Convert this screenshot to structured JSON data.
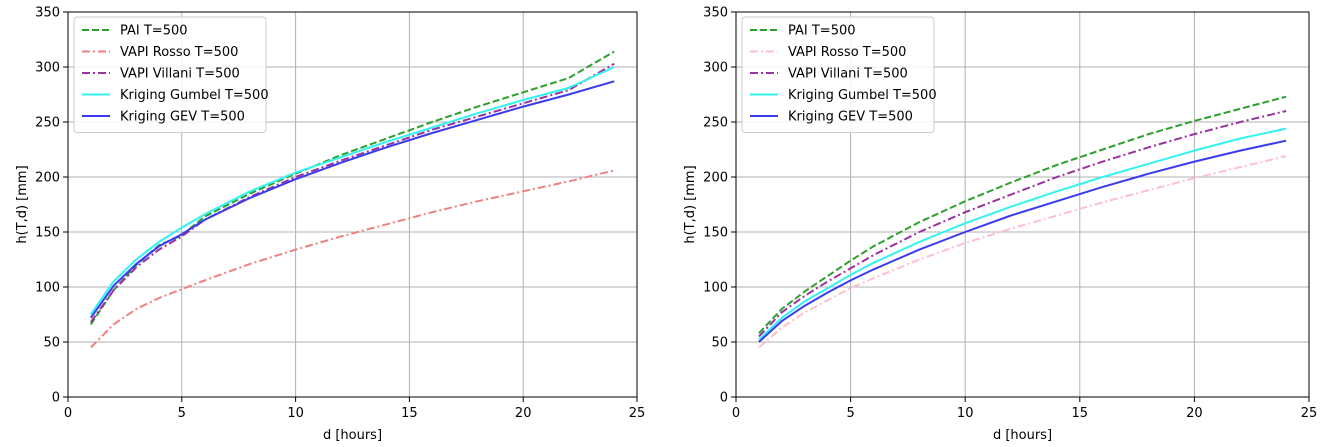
{
  "chart_data": [
    {
      "type": "line",
      "xlabel": "d [hours]",
      "ylabel": "h(T,d) [mm]",
      "xlim": [
        0,
        25
      ],
      "ylim": [
        0,
        350
      ],
      "xticks": [
        0,
        5,
        10,
        15,
        20,
        25
      ],
      "yticks": [
        0,
        50,
        100,
        150,
        200,
        250,
        300,
        350
      ],
      "grid": true,
      "legend": "top-left",
      "x": [
        1,
        2,
        3,
        4,
        5,
        6,
        8,
        10,
        12,
        14,
        16,
        18,
        20,
        22,
        24
      ],
      "series": [
        {
          "name": "PAI T=500",
          "color": "#2ca02c",
          "style": "dashed",
          "values": [
            66,
            97,
            120,
            138,
            147,
            164,
            185,
            203,
            220,
            235,
            250,
            264,
            277,
            290,
            314
          ]
        },
        {
          "name": "VAPI Rosso T=500",
          "color": "#f08080",
          "style": "dashdot",
          "values": [
            45,
            66,
            80,
            90,
            98,
            106,
            121,
            134,
            146,
            157,
            168,
            178,
            187,
            196,
            206
          ]
        },
        {
          "name": "VAPI Villani T=500",
          "color": "#9932a0",
          "style": "dashdot",
          "values": [
            68,
            97,
            118,
            134,
            146,
            161,
            182,
            200,
            215,
            229,
            243,
            255,
            267,
            279,
            303
          ]
        },
        {
          "name": "Kriging Gumbel T=500",
          "color": "#33f2f2",
          "style": "solid",
          "values": [
            75,
            105,
            125,
            141,
            154,
            166,
            187,
            204,
            218,
            232,
            245,
            258,
            270,
            281,
            300
          ]
        },
        {
          "name": "Kriging GEV T=500",
          "color": "#3a3aee",
          "style": "solid",
          "values": [
            72,
            101,
            121,
            137,
            148,
            161,
            181,
            198,
            213,
            227,
            240,
            252,
            264,
            275,
            287
          ]
        }
      ]
    },
    {
      "type": "line",
      "xlabel": "d [hours]",
      "ylabel": "h(T,d) [mm]",
      "xlim": [
        0,
        25
      ],
      "ylim": [
        0,
        350
      ],
      "xticks": [
        0,
        5,
        10,
        15,
        20,
        25
      ],
      "yticks": [
        0,
        50,
        100,
        150,
        200,
        250,
        300,
        350
      ],
      "grid": true,
      "legend": "top-left",
      "x": [
        1,
        2,
        3,
        4,
        5,
        6,
        8,
        10,
        12,
        14,
        16,
        18,
        20,
        22,
        24
      ],
      "series": [
        {
          "name": "PAI T=500",
          "color": "#2ca02c",
          "style": "dashed",
          "values": [
            58,
            80,
            96,
            110,
            124,
            137,
            159,
            178,
            195,
            211,
            225,
            239,
            251,
            262,
            273
          ]
        },
        {
          "name": "VAPI Rosso T=500",
          "color": "#ffc0cb",
          "style": "dashdot",
          "values": [
            45,
            63,
            77,
            88,
            99,
            108,
            125,
            140,
            153,
            165,
            177,
            188,
            199,
            209,
            219
          ]
        },
        {
          "name": "VAPI Villani T=500",
          "color": "#9932a0",
          "style": "dashdot",
          "values": [
            55,
            77,
            92,
            105,
            117,
            129,
            150,
            168,
            184,
            200,
            214,
            227,
            239,
            250,
            260
          ]
        },
        {
          "name": "Kriging Gumbel T=500",
          "color": "#33f2f2",
          "style": "solid",
          "values": [
            52,
            72,
            87,
            99,
            111,
            122,
            141,
            158,
            173,
            187,
            200,
            212,
            224,
            235,
            244
          ]
        },
        {
          "name": "Kriging GEV T=500",
          "color": "#3a3aee",
          "style": "solid",
          "values": [
            50,
            69,
            83,
            95,
            106,
            116,
            134,
            150,
            165,
            178,
            191,
            203,
            214,
            224,
            233
          ]
        }
      ]
    }
  ]
}
